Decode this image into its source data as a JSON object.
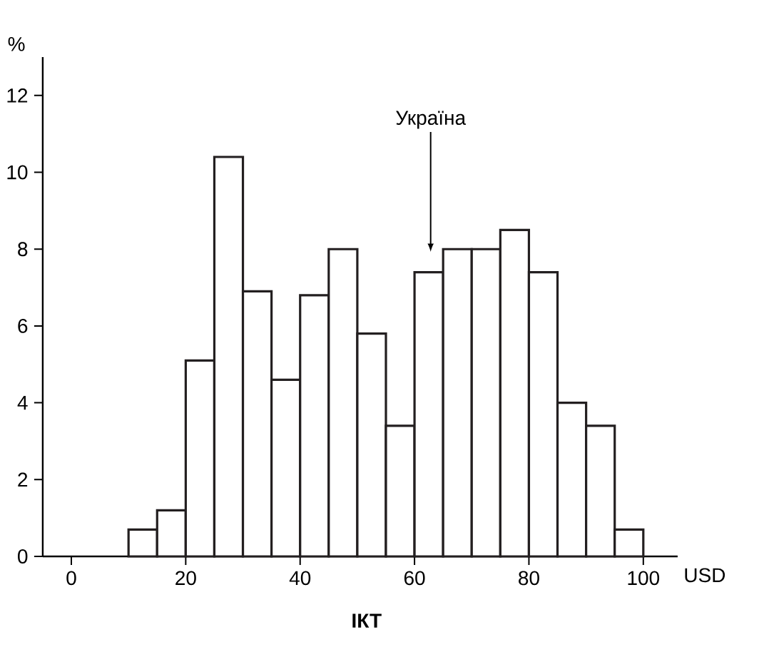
{
  "chart_data": {
    "type": "histogram",
    "title": "**ІКТ**",
    "xlabel": "USD",
    "ylabel": "%",
    "bins": [
      10,
      15,
      20,
      25,
      30,
      35,
      40,
      45,
      50,
      55,
      60,
      65,
      70,
      75,
      80,
      85,
      90,
      95,
      100
    ],
    "values": [
      0.7,
      1.2,
      5.1,
      10.4,
      6.9,
      4.6,
      6.8,
      8.0,
      5.8,
      3.4,
      7.4,
      8.0,
      8.0,
      8.5,
      7.4,
      4.0,
      3.4,
      0.7
    ],
    "color": "#231f20",
    "xlim": [
      -5,
      106
    ],
    "ylim": [
      0,
      13
    ],
    "xticks": [
      0,
      20,
      40,
      60,
      80,
      100
    ],
    "yticks": [
      0,
      2,
      4,
      6,
      8,
      10,
      12
    ],
    "annotations": [
      "Україна"
    ]
  }
}
